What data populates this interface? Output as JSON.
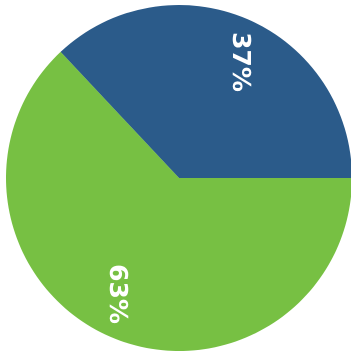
{
  "chart_data": {
    "type": "pie",
    "slices": [
      {
        "label": "37%",
        "value": 37,
        "color": "#2b5b8a"
      },
      {
        "label": "63%",
        "value": 63,
        "color": "#77c043"
      }
    ],
    "legend": "none"
  }
}
